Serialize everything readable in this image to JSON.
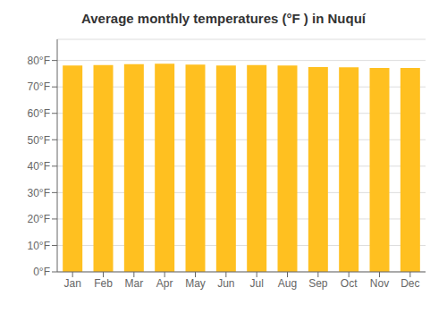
{
  "chart_data": {
    "type": "bar",
    "title": "Average monthly temperatures (°F ) in Nuquí",
    "categories": [
      "Jan",
      "Feb",
      "Mar",
      "Apr",
      "May",
      "Jun",
      "Jul",
      "Aug",
      "Sep",
      "Oct",
      "Nov",
      "Dec"
    ],
    "values": [
      78.1,
      78.3,
      78.6,
      78.8,
      78.4,
      78.1,
      78.3,
      78.1,
      77.5,
      77.4,
      77.2,
      77.2
    ],
    "color": "#FFC020",
    "ylim": [
      0,
      88
    ],
    "yticks": [
      {
        "value": 0,
        "label": "0°F"
      },
      {
        "value": 10,
        "label": "10°F"
      },
      {
        "value": 20,
        "label": "20°F"
      },
      {
        "value": 30,
        "label": "30°F"
      },
      {
        "value": 40,
        "label": "40°F"
      },
      {
        "value": 50,
        "label": "50°F"
      },
      {
        "value": 60,
        "label": "60°F"
      },
      {
        "value": 70,
        "label": "70°F"
      },
      {
        "value": 80,
        "label": "80°F"
      }
    ],
    "grid": true
  }
}
